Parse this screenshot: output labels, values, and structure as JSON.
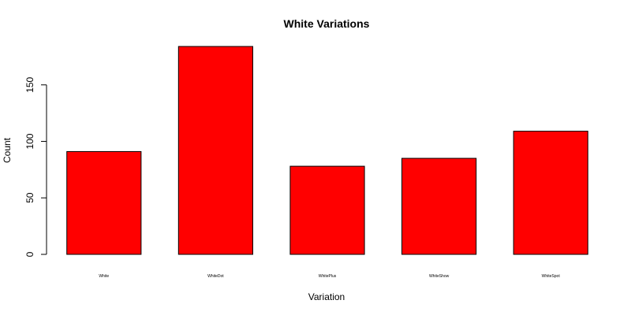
{
  "chart_data": {
    "type": "bar",
    "title": "White Variations",
    "xlabel": "Variation",
    "ylabel": "Count",
    "categories": [
      "White",
      "WhiteDot",
      "WhitePlus",
      "WhiteShow",
      "WhiteSpot"
    ],
    "values": [
      91,
      184,
      78,
      85,
      109
    ],
    "ylim": [
      0,
      184
    ],
    "yticks": [
      0,
      50,
      100,
      150
    ],
    "bar_color": "#ff0000",
    "grid": false,
    "legend": "none"
  }
}
